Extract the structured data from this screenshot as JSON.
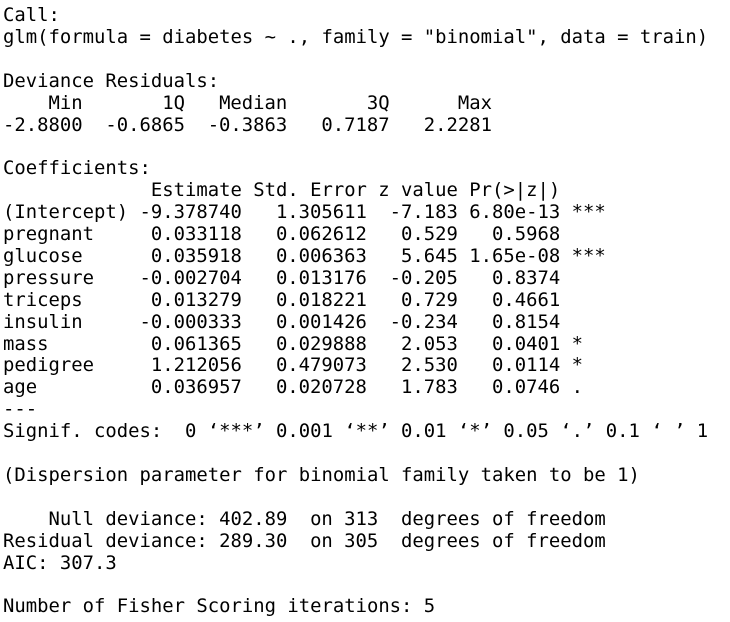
{
  "call": {
    "label": "Call:",
    "text": "glm(formula = diabetes ~ ., family = \"binomial\", data = train)"
  },
  "residuals": {
    "title": "Deviance Residuals:",
    "headers": [
      "Min",
      "1Q",
      "Median",
      "3Q",
      "Max"
    ],
    "values": [
      "-2.8800",
      "-0.6865",
      "-0.3863",
      "0.7187",
      "2.2281"
    ]
  },
  "coefficients": {
    "title": "Coefficients:",
    "headers": [
      "Estimate",
      "Std. Error",
      "z value",
      "Pr(>|z|)"
    ],
    "rows": [
      [
        "(Intercept)",
        "-9.378740",
        "1.305611",
        "-7.183",
        "6.80e-13",
        "***"
      ],
      [
        "pregnant",
        "0.033118",
        "0.062612",
        "0.529",
        "0.5968"
      ],
      [
        "glucose",
        "0.035918",
        "0.006363",
        "5.645",
        "1.65e-08",
        "***"
      ],
      [
        "pressure",
        "-0.002704",
        "0.013176",
        "-0.205",
        "0.8374"
      ],
      [
        "triceps",
        "0.013279",
        "0.018221",
        "0.729",
        "0.4661"
      ],
      [
        "insulin",
        "-0.000333",
        "0.001426",
        "-0.234",
        "0.8154"
      ],
      [
        "mass",
        "0.061365",
        "0.029888",
        "2.053",
        "0.0401",
        "*"
      ],
      [
        "pedigree",
        "1.212056",
        "0.479073",
        "2.530",
        "0.0114",
        "*"
      ],
      [
        "age",
        "0.036957",
        "0.020728",
        "1.783",
        "0.0746",
        "."
      ]
    ]
  },
  "separator": "---",
  "signif": "Signif. codes:  0 ‘***’ 0.001 ‘**’ 0.01 ‘*’ 0.05 ‘.’ 0.1 ‘ ’ 1",
  "dispersion": "(Dispersion parameter for binomial family taken to be 1)",
  "deviance": [
    {
      "label": "Null deviance:",
      "text": "402.89  on 313  degrees of freedom"
    },
    {
      "label": "Residual deviance:",
      "text": "289.30  on 305  degrees of freedom"
    }
  ],
  "aic": "AIC: 307.3",
  "iterations": "Number of Fisher Scoring iterations: 5"
}
